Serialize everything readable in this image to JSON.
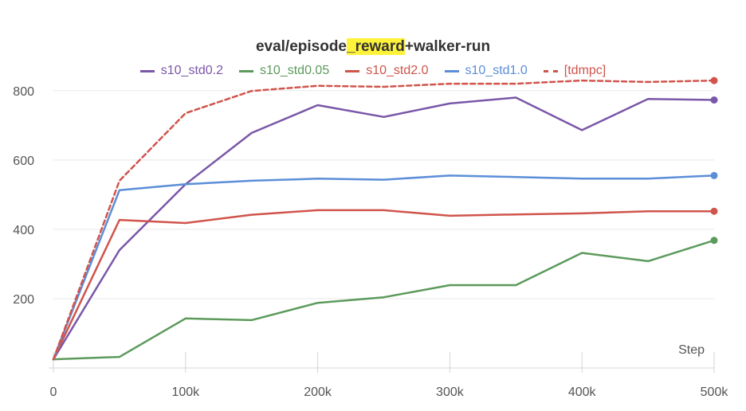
{
  "chart_data": {
    "type": "line",
    "title_parts": {
      "before": "eval/episode",
      "highlight": "_reward",
      "after": "+walker-run"
    },
    "xlabel": "Step",
    "ylabel": "",
    "xlim": [
      0,
      500000
    ],
    "ylim": [
      0,
      850
    ],
    "x_ticks": [
      0,
      100000,
      200000,
      300000,
      400000,
      500000
    ],
    "x_tick_labels": [
      "0",
      "100k",
      "200k",
      "300k",
      "400k",
      "500k"
    ],
    "y_ticks": [
      200,
      400,
      600,
      800
    ],
    "y_tick_labels": [
      "200",
      "400",
      "600",
      "800"
    ],
    "grid": "horizontal",
    "legend_position": "top-center",
    "highlight_color": "#fff23a",
    "series": [
      {
        "name": "s10_std0.2",
        "color": "#7a57a8",
        "dashed": false,
        "x": [
          0,
          50000,
          100000,
          150000,
          200000,
          250000,
          300000,
          350000,
          400000,
          450000,
          500000
        ],
        "y": [
          25,
          340,
          530,
          678,
          758,
          724,
          763,
          780,
          686,
          776,
          773
        ]
      },
      {
        "name": "s10_std0.05",
        "color": "#5c9a5c",
        "dashed": false,
        "x": [
          0,
          50000,
          100000,
          150000,
          200000,
          250000,
          300000,
          350000,
          400000,
          450000,
          500000
        ],
        "y": [
          25,
          32,
          143,
          138,
          188,
          204,
          239,
          239,
          332,
          308,
          368
        ]
      },
      {
        "name": "s10_std2.0",
        "color": "#d0544c",
        "dashed": false,
        "x": [
          0,
          50000,
          100000,
          150000,
          200000,
          250000,
          300000,
          350000,
          400000,
          450000,
          500000
        ],
        "y": [
          25,
          427,
          418,
          442,
          455,
          455,
          439,
          443,
          446,
          452,
          452
        ]
      },
      {
        "name": "s10_std1.0",
        "color": "#5b8ed8",
        "dashed": false,
        "x": [
          0,
          50000,
          100000,
          150000,
          200000,
          250000,
          300000,
          350000,
          400000,
          450000,
          500000
        ],
        "y": [
          25,
          513,
          530,
          540,
          546,
          543,
          555,
          551,
          546,
          546,
          555
        ]
      },
      {
        "name": "[tdmpc]",
        "color": "#d0544c",
        "dashed": true,
        "x": [
          0,
          50000,
          100000,
          150000,
          200000,
          250000,
          300000,
          350000,
          400000,
          450000,
          500000
        ],
        "y": [
          25,
          540,
          735,
          799,
          814,
          811,
          820,
          820,
          829,
          825,
          829
        ]
      }
    ]
  }
}
